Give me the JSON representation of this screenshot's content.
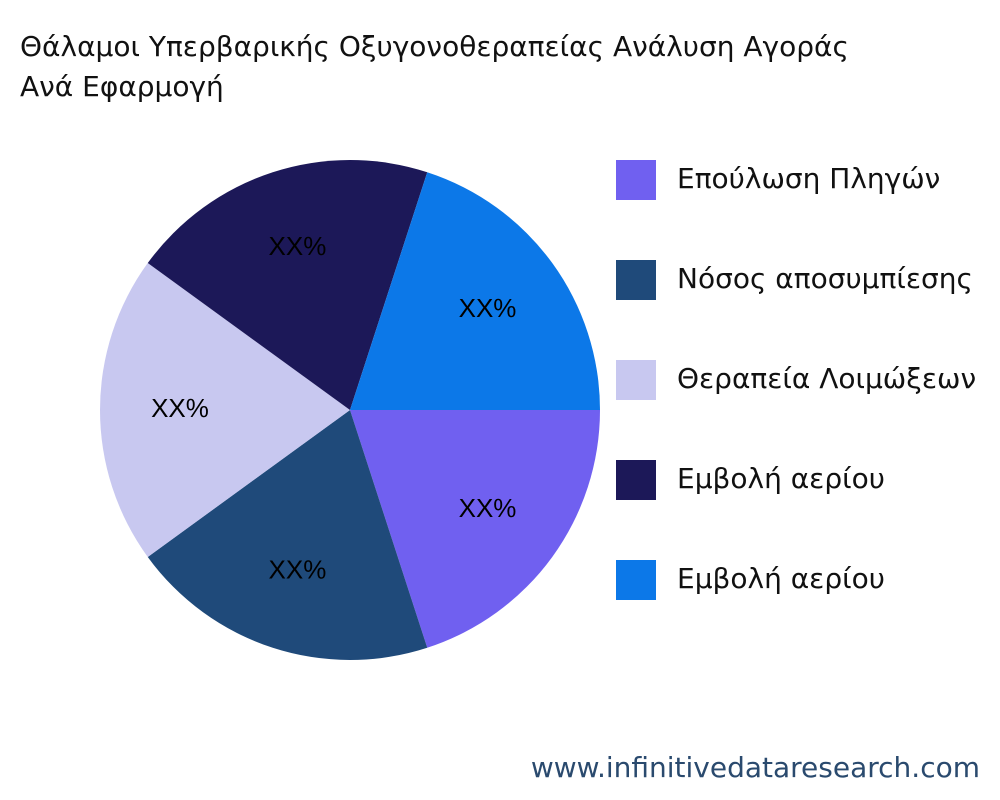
{
  "chart_data": {
    "type": "pie",
    "title": "Θάλαμοι Υπερβαρικής Οξυγονοθεραπείας Ανάλυση Αγοράς",
    "subtitle": "Ανά Εφαρμογή",
    "categories": [
      "Επούλωση Πληγών",
      "Νόσος αποσυμπίεσης",
      "Θεραπεία Λοιμώξεων",
      "Εμβολή αερίου",
      "Εμβολή αερίου"
    ],
    "values": [
      20,
      20,
      20,
      20,
      20
    ],
    "value_labels": [
      "XX%",
      "XX%",
      "XX%",
      "XX%",
      "XX%"
    ],
    "colors": [
      "#7060f0",
      "#1f4a7a",
      "#c8c8f0",
      "#1c1858",
      "#0c78e8"
    ],
    "legend": "right"
  },
  "footer": "www.infinitivedataresearch.com"
}
